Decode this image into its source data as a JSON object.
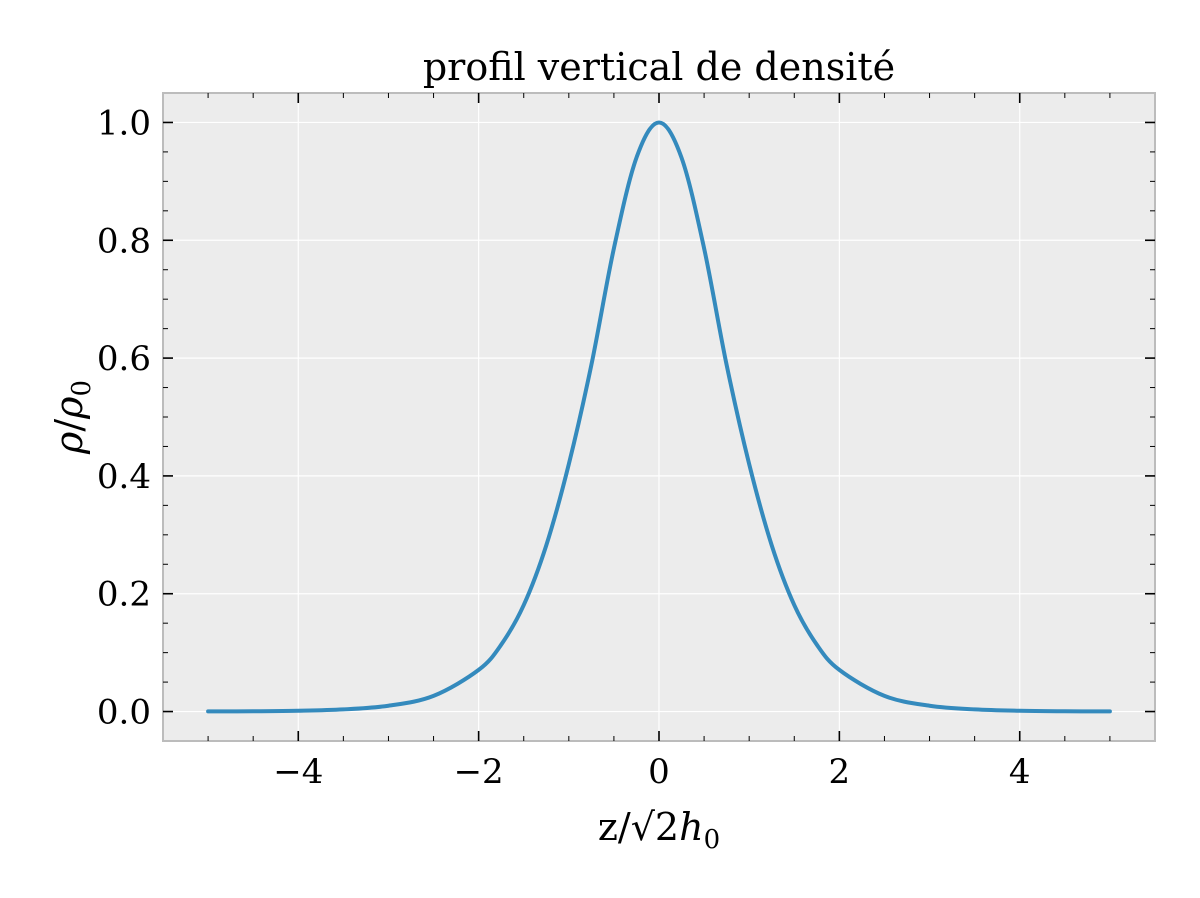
{
  "chart_data": {
    "type": "line",
    "title": "profil vertical de densité",
    "xlabel": "z/√2h₀",
    "ylabel": "ρ/ρ₀",
    "xlim": [
      -5.5,
      5.5
    ],
    "ylim": [
      -0.05,
      1.05
    ],
    "x_ticks": [
      -4,
      -2,
      0,
      2,
      4
    ],
    "x_tick_labels": [
      "−4",
      "−2",
      "0",
      "2",
      "4"
    ],
    "y_ticks": [
      0.0,
      0.2,
      0.4,
      0.6,
      0.8,
      1.0
    ],
    "y_tick_labels": [
      "0.0",
      "0.2",
      "0.4",
      "0.6",
      "0.8",
      "1.0"
    ],
    "grid": true,
    "background_color": "#ececec",
    "series": [
      {
        "color": "#348abd",
        "x": [
          -5.0,
          -4.5,
          -4.0,
          -3.5,
          -3.0,
          -2.5,
          -2.0,
          -1.75,
          -1.5,
          -1.25,
          -1.0,
          -0.75,
          -0.5,
          -0.25,
          0.0,
          0.25,
          0.5,
          0.75,
          1.0,
          1.25,
          1.5,
          1.75,
          2.0,
          2.5,
          3.0,
          3.5,
          4.0,
          4.5,
          5.0
        ],
        "y": [
          0.0002,
          0.0005,
          0.0013,
          0.0036,
          0.0099,
          0.0266,
          0.0707,
          0.1135,
          0.1807,
          0.2821,
          0.42,
          0.5884,
          0.7864,
          0.9401,
          1.0,
          0.9401,
          0.7864,
          0.5884,
          0.42,
          0.2821,
          0.1807,
          0.1135,
          0.0707,
          0.0266,
          0.0099,
          0.0036,
          0.0013,
          0.0005,
          0.0002
        ]
      }
    ]
  }
}
